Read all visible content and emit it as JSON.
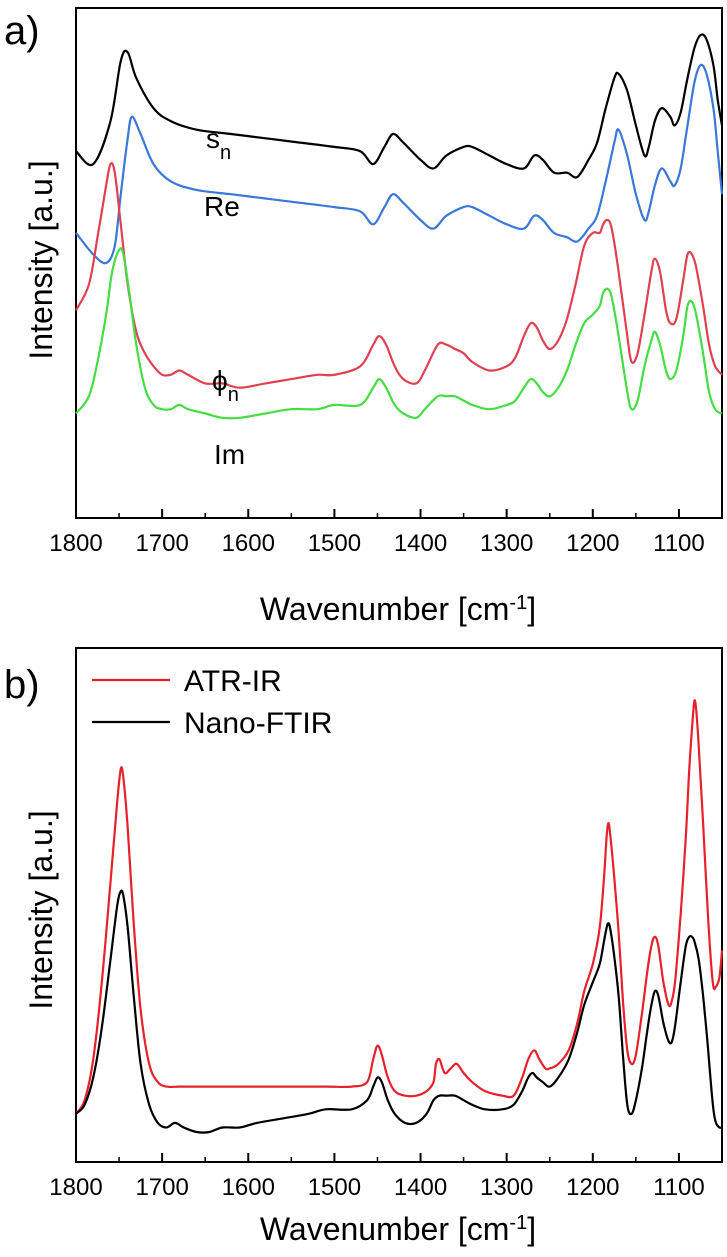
{
  "chart_data": [
    {
      "type": "line",
      "panel_label": "a)",
      "xlabel": "Wavenumber [cm",
      "xlabel_sup": "-1",
      "xlabel_close": "]",
      "ylabel": "Intensity [a.u.]",
      "xlim": [
        1800,
        1050
      ],
      "x_reversed": true,
      "ylim": [
        0,
        1
      ],
      "y_tick_labels": false,
      "grid": false,
      "legend": "none",
      "x_ticks": [
        "1800",
        "1700",
        "1600",
        "1500",
        "1400",
        "1300",
        "1200",
        "1100"
      ],
      "series": [
        {
          "name": "sn",
          "label_main": "s",
          "label_sub": "n",
          "color": "#000000",
          "x": [
            1800,
            1780,
            1760,
            1748,
            1740,
            1730,
            1710,
            1690,
            1660,
            1620,
            1580,
            1540,
            1500,
            1470,
            1455,
            1442,
            1432,
            1420,
            1400,
            1385,
            1370,
            1350,
            1340,
            1320,
            1300,
            1280,
            1268,
            1258,
            1245,
            1230,
            1218,
            1205,
            1195,
            1185,
            1175,
            1170,
            1160,
            1150,
            1140,
            1135,
            1128,
            1120,
            1110,
            1105,
            1098,
            1090,
            1082,
            1075,
            1068,
            1060,
            1055,
            1050
          ],
          "y": [
            0.76,
            0.73,
            0.83,
            0.97,
            0.99,
            0.93,
            0.86,
            0.83,
            0.81,
            0.8,
            0.79,
            0.78,
            0.77,
            0.76,
            0.73,
            0.77,
            0.8,
            0.78,
            0.74,
            0.72,
            0.75,
            0.77,
            0.77,
            0.75,
            0.73,
            0.72,
            0.75,
            0.74,
            0.71,
            0.71,
            0.7,
            0.74,
            0.78,
            0.86,
            0.93,
            0.94,
            0.9,
            0.82,
            0.75,
            0.77,
            0.83,
            0.86,
            0.84,
            0.82,
            0.85,
            0.93,
            1.0,
            1.03,
            1.02,
            0.96,
            0.88,
            0.82
          ]
        },
        {
          "name": "Re",
          "label_main": "Re",
          "label_sub": "",
          "color": "#3a78d8",
          "x": [
            1800,
            1780,
            1765,
            1755,
            1748,
            1740,
            1735,
            1725,
            1710,
            1690,
            1660,
            1620,
            1580,
            1540,
            1500,
            1470,
            1455,
            1442,
            1432,
            1420,
            1400,
            1385,
            1370,
            1350,
            1340,
            1320,
            1300,
            1280,
            1268,
            1258,
            1245,
            1230,
            1218,
            1205,
            1195,
            1185,
            1175,
            1170,
            1160,
            1150,
            1140,
            1135,
            1128,
            1120,
            1110,
            1105,
            1098,
            1090,
            1082,
            1075,
            1068,
            1060,
            1055,
            1050
          ],
          "y": [
            0.57,
            0.52,
            0.5,
            0.54,
            0.66,
            0.79,
            0.84,
            0.8,
            0.73,
            0.69,
            0.67,
            0.66,
            0.65,
            0.64,
            0.63,
            0.62,
            0.59,
            0.63,
            0.66,
            0.64,
            0.6,
            0.58,
            0.61,
            0.63,
            0.63,
            0.61,
            0.59,
            0.58,
            0.61,
            0.6,
            0.57,
            0.56,
            0.55,
            0.58,
            0.61,
            0.69,
            0.78,
            0.81,
            0.75,
            0.66,
            0.6,
            0.62,
            0.68,
            0.72,
            0.69,
            0.68,
            0.72,
            0.82,
            0.92,
            0.96,
            0.94,
            0.86,
            0.76,
            0.66
          ]
        },
        {
          "name": "φn",
          "label_main": "ϕ",
          "label_sub": "n",
          "color": "#e04050",
          "x": [
            1800,
            1785,
            1775,
            1765,
            1760,
            1755,
            1748,
            1740,
            1730,
            1720,
            1710,
            1700,
            1690,
            1680,
            1670,
            1650,
            1630,
            1610,
            1580,
            1550,
            1520,
            1500,
            1470,
            1455,
            1448,
            1440,
            1430,
            1420,
            1405,
            1395,
            1380,
            1370,
            1360,
            1350,
            1340,
            1320,
            1300,
            1290,
            1280,
            1272,
            1265,
            1258,
            1250,
            1240,
            1230,
            1220,
            1210,
            1200,
            1192,
            1188,
            1183,
            1178,
            1170,
            1160,
            1155,
            1148,
            1140,
            1132,
            1128,
            1122,
            1115,
            1110,
            1103,
            1095,
            1090,
            1085,
            1080,
            1072,
            1065,
            1058,
            1050
          ],
          "y": [
            0.39,
            0.45,
            0.56,
            0.68,
            0.73,
            0.71,
            0.59,
            0.45,
            0.34,
            0.29,
            0.26,
            0.24,
            0.24,
            0.25,
            0.24,
            0.22,
            0.22,
            0.21,
            0.22,
            0.23,
            0.24,
            0.24,
            0.26,
            0.31,
            0.33,
            0.31,
            0.26,
            0.23,
            0.22,
            0.25,
            0.31,
            0.31,
            0.3,
            0.29,
            0.27,
            0.25,
            0.26,
            0.28,
            0.33,
            0.36,
            0.35,
            0.32,
            0.3,
            0.32,
            0.37,
            0.45,
            0.54,
            0.57,
            0.57,
            0.59,
            0.6,
            0.58,
            0.48,
            0.33,
            0.27,
            0.29,
            0.38,
            0.48,
            0.51,
            0.48,
            0.39,
            0.36,
            0.37,
            0.46,
            0.52,
            0.52,
            0.49,
            0.4,
            0.31,
            0.26,
            0.24
          ]
        },
        {
          "name": "Im",
          "label_main": "Im",
          "label_sub": "",
          "color": "#44dd44",
          "x": [
            1800,
            1785,
            1775,
            1765,
            1758,
            1750,
            1745,
            1738,
            1730,
            1720,
            1710,
            1700,
            1690,
            1680,
            1670,
            1650,
            1630,
            1610,
            1580,
            1550,
            1520,
            1500,
            1470,
            1455,
            1448,
            1440,
            1430,
            1420,
            1405,
            1395,
            1380,
            1370,
            1360,
            1350,
            1340,
            1320,
            1300,
            1290,
            1280,
            1272,
            1265,
            1258,
            1250,
            1240,
            1230,
            1220,
            1210,
            1200,
            1192,
            1188,
            1183,
            1178,
            1170,
            1160,
            1155,
            1148,
            1140,
            1132,
            1128,
            1122,
            1115,
            1110,
            1103,
            1095,
            1090,
            1085,
            1080,
            1072,
            1065,
            1058,
            1050
          ],
          "y": [
            0.15,
            0.19,
            0.27,
            0.38,
            0.48,
            0.53,
            0.52,
            0.43,
            0.31,
            0.21,
            0.17,
            0.16,
            0.16,
            0.17,
            0.16,
            0.15,
            0.14,
            0.14,
            0.15,
            0.16,
            0.16,
            0.17,
            0.17,
            0.21,
            0.23,
            0.21,
            0.17,
            0.15,
            0.14,
            0.16,
            0.19,
            0.19,
            0.19,
            0.18,
            0.17,
            0.16,
            0.17,
            0.18,
            0.21,
            0.23,
            0.22,
            0.2,
            0.19,
            0.21,
            0.25,
            0.31,
            0.36,
            0.38,
            0.4,
            0.43,
            0.44,
            0.42,
            0.33,
            0.2,
            0.16,
            0.18,
            0.26,
            0.32,
            0.34,
            0.31,
            0.25,
            0.23,
            0.25,
            0.33,
            0.4,
            0.41,
            0.38,
            0.29,
            0.2,
            0.16,
            0.15
          ]
        }
      ]
    },
    {
      "type": "line",
      "panel_label": "b)",
      "xlabel": "Wavenumber [cm",
      "xlabel_sup": "-1",
      "xlabel_close": "]",
      "ylabel": "Intensity [a.u.]",
      "xlim": [
        1800,
        1050
      ],
      "x_reversed": true,
      "ylim": [
        0,
        1
      ],
      "y_tick_labels": false,
      "grid": false,
      "legend": "top-left",
      "x_ticks": [
        "1800",
        "1700",
        "1600",
        "1500",
        "1400",
        "1300",
        "1200",
        "1100"
      ],
      "series": [
        {
          "name": "ATR-IR",
          "color": "#e8202a",
          "x": [
            1800,
            1790,
            1780,
            1770,
            1760,
            1752,
            1748,
            1745,
            1740,
            1733,
            1725,
            1715,
            1705,
            1695,
            1680,
            1650,
            1610,
            1560,
            1510,
            1480,
            1462,
            1455,
            1450,
            1445,
            1438,
            1430,
            1418,
            1405,
            1393,
            1385,
            1382,
            1378,
            1372,
            1365,
            1358,
            1350,
            1340,
            1325,
            1305,
            1292,
            1282,
            1275,
            1268,
            1262,
            1255,
            1250,
            1240,
            1228,
            1218,
            1210,
            1200,
            1192,
            1187,
            1184,
            1182,
            1180,
            1176,
            1170,
            1165,
            1160,
            1155,
            1150,
            1143,
            1137,
            1132,
            1128,
            1124,
            1118,
            1112,
            1108,
            1104,
            1098,
            1092,
            1088,
            1084,
            1082,
            1080,
            1077,
            1072,
            1067,
            1063,
            1060,
            1057,
            1053,
            1050
          ],
          "y": [
            0.04,
            0.07,
            0.16,
            0.33,
            0.55,
            0.73,
            0.8,
            0.78,
            0.67,
            0.46,
            0.27,
            0.15,
            0.11,
            0.1,
            0.1,
            0.1,
            0.1,
            0.1,
            0.1,
            0.1,
            0.11,
            0.16,
            0.19,
            0.17,
            0.12,
            0.09,
            0.08,
            0.08,
            0.09,
            0.11,
            0.15,
            0.16,
            0.13,
            0.14,
            0.15,
            0.13,
            0.11,
            0.09,
            0.08,
            0.08,
            0.12,
            0.16,
            0.18,
            0.16,
            0.14,
            0.14,
            0.15,
            0.18,
            0.24,
            0.31,
            0.37,
            0.45,
            0.56,
            0.65,
            0.68,
            0.66,
            0.58,
            0.44,
            0.29,
            0.18,
            0.15,
            0.17,
            0.26,
            0.35,
            0.41,
            0.43,
            0.41,
            0.33,
            0.28,
            0.29,
            0.34,
            0.48,
            0.65,
            0.8,
            0.91,
            0.95,
            0.93,
            0.85,
            0.68,
            0.5,
            0.38,
            0.32,
            0.32,
            0.34,
            0.4
          ]
        },
        {
          "name": "Nano-FTIR",
          "color": "#000000",
          "x": [
            1800,
            1790,
            1780,
            1770,
            1760,
            1752,
            1748,
            1745,
            1740,
            1733,
            1725,
            1715,
            1705,
            1695,
            1685,
            1675,
            1660,
            1645,
            1630,
            1610,
            1590,
            1560,
            1530,
            1510,
            1480,
            1462,
            1455,
            1450,
            1445,
            1438,
            1430,
            1418,
            1405,
            1393,
            1385,
            1378,
            1370,
            1360,
            1350,
            1340,
            1325,
            1305,
            1292,
            1282,
            1275,
            1270,
            1265,
            1258,
            1250,
            1240,
            1228,
            1218,
            1210,
            1200,
            1192,
            1187,
            1184,
            1182,
            1180,
            1176,
            1170,
            1165,
            1160,
            1155,
            1150,
            1143,
            1137,
            1132,
            1128,
            1124,
            1118,
            1112,
            1108,
            1104,
            1098,
            1092,
            1088,
            1085,
            1082,
            1077,
            1072,
            1067,
            1063,
            1060,
            1057,
            1053,
            1050
          ],
          "y": [
            0.04,
            0.06,
            0.12,
            0.23,
            0.38,
            0.5,
            0.53,
            0.52,
            0.45,
            0.3,
            0.15,
            0.06,
            0.02,
            0.01,
            0.02,
            0.01,
            0.0,
            0.0,
            0.01,
            0.01,
            0.02,
            0.03,
            0.04,
            0.05,
            0.05,
            0.07,
            0.1,
            0.12,
            0.11,
            0.07,
            0.04,
            0.02,
            0.02,
            0.04,
            0.07,
            0.08,
            0.08,
            0.08,
            0.07,
            0.06,
            0.05,
            0.05,
            0.06,
            0.09,
            0.12,
            0.13,
            0.12,
            0.11,
            0.1,
            0.12,
            0.16,
            0.22,
            0.28,
            0.33,
            0.37,
            0.42,
            0.45,
            0.46,
            0.45,
            0.4,
            0.3,
            0.17,
            0.06,
            0.04,
            0.07,
            0.14,
            0.22,
            0.28,
            0.31,
            0.3,
            0.24,
            0.2,
            0.2,
            0.24,
            0.33,
            0.41,
            0.43,
            0.43,
            0.42,
            0.38,
            0.3,
            0.2,
            0.11,
            0.05,
            0.02,
            0.01,
            0.01
          ]
        }
      ]
    }
  ]
}
